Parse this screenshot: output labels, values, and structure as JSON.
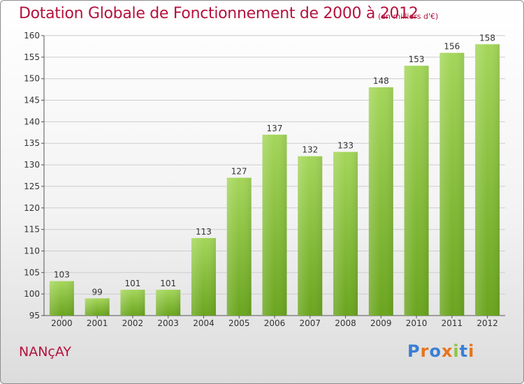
{
  "header": {
    "title": "Dotation Globale de Fonctionnement de 2000 à 2012",
    "subtitle": "(en milliers d'€)"
  },
  "footer": {
    "town": "NANçAY",
    "logo": {
      "text": "Proxiti",
      "letter_colors": [
        "#3a7fd5",
        "#e8731c",
        "#3a7fd5",
        "#e8731c",
        "#8cc63f",
        "#3a7fd5",
        "#e8731c"
      ]
    }
  },
  "colors": {
    "title": "#b5123d",
    "bar_top": "#a4d65a",
    "bar_bottom": "#6aa51e",
    "grid": "#cccccc",
    "axis": "#555555"
  },
  "chart_data": {
    "type": "bar",
    "title": "Dotation Globale de Fonctionnement de 2000 à 2012",
    "subtitle": "(en milliers d'€)",
    "categories": [
      "2000",
      "2001",
      "2002",
      "2003",
      "2004",
      "2005",
      "2006",
      "2007",
      "2008",
      "2009",
      "2010",
      "2011",
      "2012"
    ],
    "values": [
      103,
      99,
      101,
      101,
      113,
      127,
      137,
      132,
      133,
      148,
      153,
      156,
      158
    ],
    "ylim": [
      95,
      160
    ],
    "yticks": [
      95,
      100,
      105,
      110,
      115,
      120,
      125,
      130,
      135,
      140,
      145,
      150,
      155,
      160
    ],
    "grid": true,
    "data_labels": true,
    "xlabel": "",
    "ylabel": ""
  }
}
